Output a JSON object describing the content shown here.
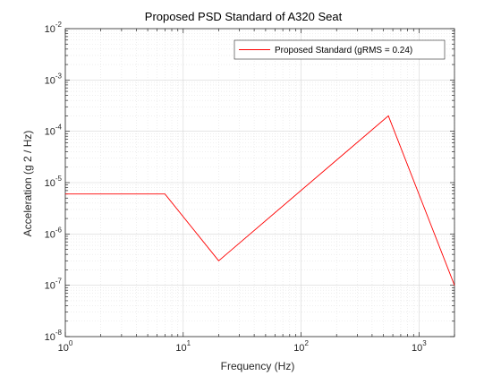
{
  "chart_data": {
    "type": "line",
    "title": "Proposed PSD Standard of A320 Seat",
    "xlabel": "Frequency (Hz)",
    "ylabel": "Acceleration (g  2 / Hz)",
    "xscale": "log",
    "yscale": "log",
    "xlim": [
      1,
      2000
    ],
    "ylim": [
      1e-08,
      0.01
    ],
    "x_ticks": [
      {
        "base": "10",
        "exp": "0"
      },
      {
        "base": "10",
        "exp": "1"
      },
      {
        "base": "10",
        "exp": "2"
      },
      {
        "base": "10",
        "exp": "3"
      }
    ],
    "y_ticks": [
      {
        "base": "10",
        "exp": "-8"
      },
      {
        "base": "10",
        "exp": "-7"
      },
      {
        "base": "10",
        "exp": "-6"
      },
      {
        "base": "10",
        "exp": "-5"
      },
      {
        "base": "10",
        "exp": "-4"
      },
      {
        "base": "10",
        "exp": "-3"
      },
      {
        "base": "10",
        "exp": "-2"
      }
    ],
    "grid": true,
    "minor_grid": true,
    "legend_position": "top-right",
    "series": [
      {
        "name": "Proposed Standard (gRMS = 0.24)",
        "color": "#ff0000",
        "x": [
          1,
          7,
          20,
          550,
          2000
        ],
        "y": [
          6e-06,
          6e-06,
          3e-07,
          0.0002,
          1e-07
        ]
      }
    ]
  }
}
